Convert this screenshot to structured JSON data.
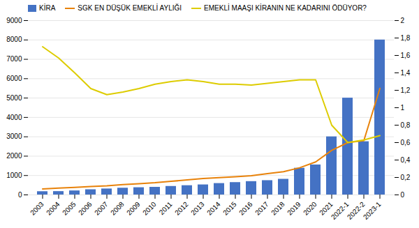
{
  "chart_data": {
    "type": "bar",
    "categories": [
      "2003",
      "2004",
      "2005",
      "2006",
      "2007",
      "2008",
      "2009",
      "2010",
      "2011",
      "2012",
      "2013",
      "2014",
      "2015",
      "2016",
      "2017",
      "2018",
      "2019",
      "2020",
      "2021",
      "2022-1",
      "2022-2",
      "2023-1"
    ],
    "series": [
      {
        "name": "KİRA",
        "type": "bar",
        "color": "#4472C4",
        "values": [
          170,
          175,
          210,
          270,
          310,
          350,
          375,
          395,
          440,
          480,
          520,
          590,
          640,
          690,
          740,
          810,
          1380,
          1550,
          3000,
          5000,
          2750,
          8000
        ]
      },
      {
        "name": "SGK EN DÜŞÜK EMEKLİ AYLIĞI",
        "type": "line",
        "color": "#E8820A",
        "values": [
          306,
          350,
          390,
          430,
          470,
          530,
          580,
          630,
          700,
          770,
          850,
          890,
          940,
          990,
          1100,
          1200,
          1400,
          1700,
          2300,
          2700,
          2800,
          5500
        ]
      },
      {
        "name": "EMEKLİ MAAŞI KİRANIN NE KADARINI ÖDÜYOR?",
        "type": "line",
        "color": "#DDCC00",
        "axis": "y2",
        "values": [
          1.7,
          1.57,
          1.4,
          1.22,
          1.15,
          1.18,
          1.22,
          1.27,
          1.3,
          1.32,
          1.3,
          1.27,
          1.27,
          1.26,
          1.28,
          1.3,
          1.32,
          1.32,
          0.8,
          0.6,
          0.63,
          0.68
        ]
      }
    ],
    "ylim": [
      0,
      9000
    ],
    "yticks": [
      0,
      1000,
      2000,
      3000,
      4000,
      5000,
      6000,
      7000,
      8000,
      9000
    ],
    "y2lim": [
      0,
      2.0
    ],
    "y2ticks": [
      0,
      {
        "value": 0.2,
        "label": "0,2"
      },
      {
        "value": 0.4,
        "label": "0,4"
      },
      {
        "value": 0.6,
        "label": "0,6"
      },
      {
        "value": 0.8,
        "label": "0,8"
      },
      1,
      {
        "value": 1.2,
        "label": "1,2"
      },
      {
        "value": 1.4,
        "label": "1,4"
      },
      {
        "value": 1.6,
        "label": "1,6"
      },
      {
        "value": 1.8,
        "label": "1,8"
      },
      2
    ],
    "grid": true,
    "legend": "upper left"
  }
}
